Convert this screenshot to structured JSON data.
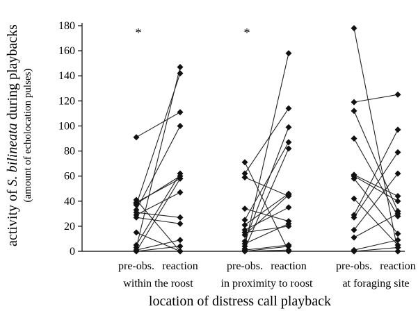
{
  "chart_data": {
    "type": "line",
    "title": "",
    "ylabel_prefix": "activity of ",
    "ylabel_species": "S. bilineata",
    "ylabel_suffix": " during playbacks",
    "ylabel_sub": "(amount of echolocation pulses)",
    "xlabel": "location of distress call playback",
    "ylim": [
      0,
      180
    ],
    "yticks": [
      0,
      20,
      40,
      60,
      80,
      100,
      120,
      140,
      160,
      180
    ],
    "grid": false,
    "legend": "none",
    "line_color": "#222222",
    "groups": [
      {
        "pre_label": "pre-obs.",
        "post_label": "reaction",
        "location": "within the roost",
        "significance": "*",
        "pairs": [
          [
            91,
            111
          ],
          [
            41,
            0
          ],
          [
            39,
            58
          ],
          [
            38,
            60
          ],
          [
            37,
            142
          ],
          [
            33,
            100
          ],
          [
            31,
            27
          ],
          [
            29,
            47
          ],
          [
            27,
            22
          ],
          [
            15,
            0
          ],
          [
            5,
            62
          ],
          [
            3,
            147
          ],
          [
            1,
            9
          ],
          [
            0,
            58
          ],
          [
            0,
            4
          ]
        ]
      },
      {
        "pre_label": "pre-obs.",
        "post_label": "reaction",
        "location": "in proximity to roost",
        "significance": "*",
        "pairs": [
          [
            71,
            0
          ],
          [
            62,
            114
          ],
          [
            59,
            44
          ],
          [
            34,
            24
          ],
          [
            25,
            87
          ],
          [
            21,
            46
          ],
          [
            17,
            35
          ],
          [
            15,
            20
          ],
          [
            13,
            45
          ],
          [
            8,
            99
          ],
          [
            6,
            22
          ],
          [
            4,
            158
          ],
          [
            2,
            82
          ],
          [
            1,
            5
          ],
          [
            0,
            1
          ],
          [
            0,
            4
          ]
        ]
      },
      {
        "pre_label": "pre-obs.",
        "post_label": "reaction",
        "location": "at foraging site",
        "significance": "",
        "pairs": [
          [
            178,
            0
          ],
          [
            119,
            125
          ],
          [
            112,
            32
          ],
          [
            90,
            28
          ],
          [
            61,
            44
          ],
          [
            60,
            40
          ],
          [
            58,
            14
          ],
          [
            42,
            5
          ],
          [
            29,
            97
          ],
          [
            27,
            79
          ],
          [
            17,
            62
          ],
          [
            11,
            30
          ],
          [
            1,
            9
          ],
          [
            0,
            0
          ],
          [
            0,
            3
          ]
        ]
      }
    ]
  }
}
